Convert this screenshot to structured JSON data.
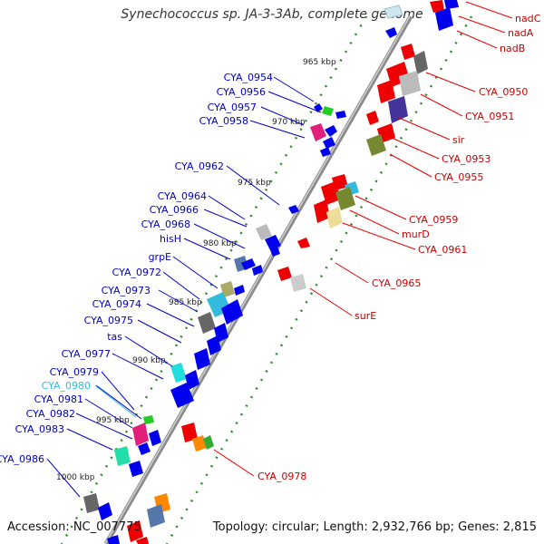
{
  "title": "Synechococcus sp. JA-3-3Ab, complete genome",
  "footer": {
    "accession": "Accession: NC_007775",
    "summary": "Topology: circular; Length: 2,932,766 bp; Genes: 2,815"
  },
  "ticks": [
    "965 kbp",
    "970 kbp",
    "975 kbp",
    "980 kbp",
    "985 kbp",
    "990 kbp",
    "995 kbp",
    "1000 kbp"
  ],
  "labels_left": [
    "CYA_0954",
    "CYA_0956",
    "CYA_0957",
    "CYA_0958",
    "CYA_0962",
    "CYA_0964",
    "CYA_0966",
    "CYA_0968",
    "hisH",
    "grpE",
    "CYA_0972",
    "CYA_0973",
    "CYA_0974",
    "CYA_0975",
    "tas",
    "CYA_0977",
    "CYA_0979",
    "CYA_0980",
    "CYA_0981",
    "CYA_0982",
    "CYA_0983",
    "CYA_0986"
  ],
  "labels_right": [
    "nadC",
    "nadA",
    "nadB",
    "CYA_0950",
    "CYA_0951",
    "sir",
    "CYA_0953",
    "CYA_0955",
    "CYA_0959",
    "murD",
    "CYA_0961",
    "CYA_0965",
    "surE",
    "CYA_0978"
  ],
  "colors": {
    "forward_label": "#cc0000",
    "reverse_label": "#0000cc",
    "highlight_label": "#33bbdd",
    "backbone": "#888888",
    "tick_dots": "#228822"
  }
}
